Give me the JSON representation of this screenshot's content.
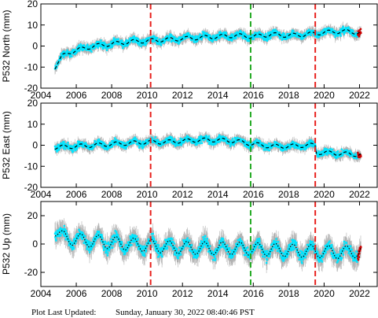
{
  "footer": {
    "label": "Plot Last Updated:",
    "timestamp": "Sunday, January 30, 2022 08:40:46 PST"
  },
  "colors": {
    "data": "#00e5ff",
    "error_bars": "#b0b0b0",
    "model": "#000000",
    "equipment_break": "#e8201c",
    "earthquake": "#22aa22",
    "recent": "#cc0000"
  },
  "chart_data": [
    {
      "type": "scatter",
      "station": "P532",
      "component": "North",
      "ylabel": "P532 North (mm)",
      "xlim": [
        2004,
        2023
      ],
      "ylim": [
        -20,
        20
      ],
      "xticks": [
        2004,
        2006,
        2008,
        2010,
        2012,
        2014,
        2016,
        2018,
        2020,
        2022
      ],
      "yticks": [
        -20,
        -10,
        0,
        10,
        20
      ],
      "start": 2004.8,
      "end": 2022.08,
      "series": [
        {
          "role": "model",
          "style": "dashed",
          "x": [
            2004.8,
            2005.2,
            2005.6,
            2006.0,
            2007.0,
            2008.0,
            2009.0,
            2010.0,
            2011.0,
            2012.0,
            2013.0,
            2014.0,
            2015.0,
            2016.0,
            2017.0,
            2018.0,
            2019.0,
            2019.5,
            2020.0,
            2021.0,
            2022.0
          ],
          "values": [
            -10,
            -5,
            -3,
            -2,
            0,
            1,
            2,
            2.5,
            3,
            3.5,
            4,
            4.5,
            5,
            4.5,
            5.5,
            5,
            5.5,
            6,
            6.5,
            7,
            6.5
          ]
        }
      ],
      "vlines": [
        {
          "x": 2010.2,
          "kind": "equipment_break",
          "style": "dashed"
        },
        {
          "x": 2015.85,
          "kind": "earthquake",
          "style": "dashed"
        },
        {
          "x": 2019.5,
          "kind": "equipment_break",
          "style": "dashed"
        }
      ]
    },
    {
      "type": "scatter",
      "station": "P532",
      "component": "East",
      "ylabel": "P532 East (mm)",
      "xlim": [
        2004,
        2023
      ],
      "ylim": [
        -20,
        20
      ],
      "xticks": [
        2004,
        2006,
        2008,
        2010,
        2012,
        2014,
        2016,
        2018,
        2020,
        2022
      ],
      "yticks": [
        -20,
        -10,
        0,
        10,
        20
      ],
      "start": 2004.8,
      "end": 2022.08,
      "series": [
        {
          "role": "model",
          "style": "dashed",
          "x": [
            2004.8,
            2006.0,
            2007.0,
            2008.0,
            2009.0,
            2010.0,
            2011.0,
            2012.0,
            2013.0,
            2014.0,
            2015.0,
            2016.0,
            2017.0,
            2018.0,
            2019.0,
            2019.5,
            2019.55,
            2020.0,
            2021.0,
            2022.0
          ],
          "values": [
            -1,
            -0.5,
            0,
            0.5,
            1,
            1.5,
            1.5,
            2,
            2.5,
            2.5,
            2,
            0.5,
            -0.5,
            -0.5,
            0,
            0,
            -3.5,
            -3.5,
            -4,
            -4.5
          ]
        }
      ],
      "vlines": [
        {
          "x": 2010.2,
          "kind": "equipment_break",
          "style": "dashed"
        },
        {
          "x": 2015.85,
          "kind": "earthquake",
          "style": "dashed"
        },
        {
          "x": 2019.5,
          "kind": "equipment_break",
          "style": "dashed"
        }
      ]
    },
    {
      "type": "scatter",
      "station": "P532",
      "component": "Up",
      "ylabel": "P532 Up (mm)",
      "xlim": [
        2004,
        2023
      ],
      "ylim": [
        -30,
        30
      ],
      "xticks": [
        2004,
        2006,
        2008,
        2010,
        2012,
        2014,
        2016,
        2018,
        2020,
        2022
      ],
      "yticks": [
        -20,
        0,
        20
      ],
      "start": 2004.8,
      "end": 2022.08,
      "series": [
        {
          "role": "model",
          "style": "dotted",
          "x": [
            2004.8,
            2005.2,
            2006.0,
            2007.0,
            2008.0,
            2009.0,
            2010.0,
            2011.0,
            2012.0,
            2013.0,
            2014.0,
            2015.0,
            2016.0,
            2017.0,
            2018.0,
            2019.0,
            2019.5,
            2020.0,
            2021.0,
            2022.0
          ],
          "values": [
            10,
            5,
            3,
            2,
            1,
            0,
            -1,
            -2,
            -2.5,
            -3,
            -3,
            -3,
            -3.5,
            -4,
            -4.5,
            -5,
            -5,
            -5.5,
            -6,
            -5
          ]
        }
      ],
      "vlines": [
        {
          "x": 2010.2,
          "kind": "equipment_break",
          "style": "dashed"
        },
        {
          "x": 2015.85,
          "kind": "earthquake",
          "style": "dashed"
        },
        {
          "x": 2019.5,
          "kind": "equipment_break",
          "style": "dashed"
        }
      ]
    }
  ]
}
